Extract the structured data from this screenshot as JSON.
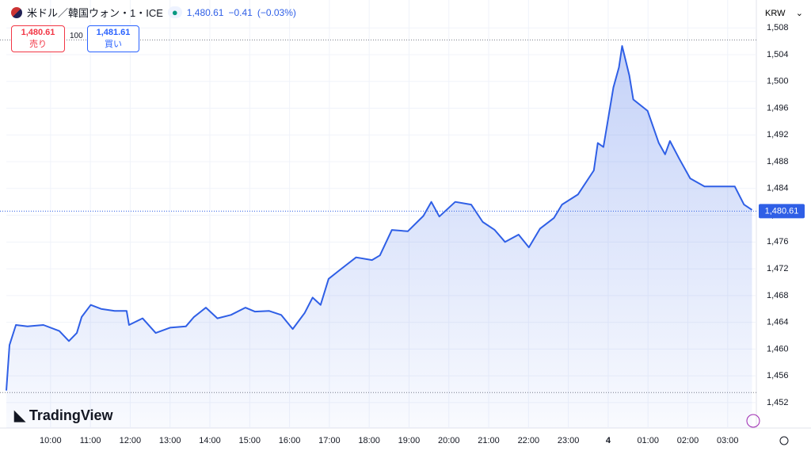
{
  "header": {
    "symbol": "米ドル／韓国ウォン・1・ICE",
    "price": "1,480.61",
    "change": "−0.41",
    "change_pct": "(−0.03%)",
    "sell": {
      "price": "1,480.61",
      "label": "売り"
    },
    "spread": "100",
    "buy": {
      "price": "1,481.61",
      "label": "買い"
    },
    "currency": "KRW",
    "logo": "TradingView"
  },
  "chart_data": {
    "type": "area",
    "color": "#2f5fe6",
    "grid": true,
    "x": [
      8.89,
      8.97,
      9.13,
      9.42,
      9.82,
      10.22,
      10.46,
      10.66,
      10.78,
      11.01,
      11.27,
      11.61,
      11.91,
      11.97,
      12.31,
      12.64,
      13.0,
      13.4,
      13.6,
      13.9,
      14.19,
      14.53,
      14.89,
      15.13,
      15.49,
      15.79,
      16.08,
      16.38,
      16.58,
      16.78,
      16.98,
      17.28,
      17.67,
      18.07,
      18.27,
      18.57,
      18.97,
      19.36,
      19.56,
      19.76,
      20.16,
      20.56,
      20.85,
      21.15,
      21.41,
      21.75,
      22.01,
      22.29,
      22.64,
      22.84,
      23.24,
      23.64,
      23.74,
      23.88,
      24.13,
      24.27,
      24.35,
      24.53,
      24.63,
      24.99,
      25.27,
      25.43,
      25.55,
      25.78,
      26.06,
      26.42,
      26.82,
      27.18,
      27.41,
      27.61
    ],
    "values": [
      1453.8,
      1460.6,
      1463.6,
      1463.4,
      1463.6,
      1462.7,
      1461.2,
      1462.4,
      1464.8,
      1466.6,
      1466.0,
      1465.7,
      1465.7,
      1463.6,
      1464.6,
      1462.4,
      1463.2,
      1463.4,
      1464.8,
      1466.2,
      1464.6,
      1465.1,
      1466.2,
      1465.6,
      1465.7,
      1465.1,
      1463.0,
      1465.4,
      1467.7,
      1466.6,
      1470.5,
      1471.9,
      1473.7,
      1473.3,
      1474.0,
      1477.8,
      1477.6,
      1479.9,
      1482.0,
      1479.8,
      1482.0,
      1481.6,
      1479.0,
      1477.8,
      1476.0,
      1477.1,
      1475.2,
      1478.0,
      1479.6,
      1481.6,
      1483.1,
      1486.7,
      1490.8,
      1490.2,
      1499.1,
      1502.1,
      1505.3,
      1500.9,
      1497.3,
      1495.6,
      1490.8,
      1489.1,
      1491.1,
      1488.5,
      1485.5,
      1484.3,
      1484.3,
      1484.3,
      1481.6,
      1480.8
    ],
    "xlim": [
      8.89,
      27.72
    ],
    "xticks": [
      {
        "value": 10,
        "label": "10:00"
      },
      {
        "value": 11,
        "label": "11:00"
      },
      {
        "value": 12,
        "label": "12:00"
      },
      {
        "value": 13,
        "label": "13:00"
      },
      {
        "value": 14,
        "label": "14:00"
      },
      {
        "value": 15,
        "label": "15:00"
      },
      {
        "value": 16,
        "label": "16:00"
      },
      {
        "value": 17,
        "label": "17:00"
      },
      {
        "value": 18,
        "label": "18:00"
      },
      {
        "value": 19,
        "label": "19:00"
      },
      {
        "value": 20,
        "label": "20:00"
      },
      {
        "value": 21,
        "label": "21:00"
      },
      {
        "value": 22,
        "label": "22:00"
      },
      {
        "value": 23,
        "label": "23:00"
      },
      {
        "value": 24,
        "label": "4"
      },
      {
        "value": 25,
        "label": "01:00"
      },
      {
        "value": 26,
        "label": "02:00"
      },
      {
        "value": 27,
        "label": "03:00"
      }
    ],
    "ylim": [
      1448.2,
      1509.8
    ],
    "yticks": [
      {
        "value": 1452,
        "label": "1,452"
      },
      {
        "value": 1456,
        "label": "1,456"
      },
      {
        "value": 1460,
        "label": "1,460"
      },
      {
        "value": 1464,
        "label": "1,464"
      },
      {
        "value": 1468,
        "label": "1,468"
      },
      {
        "value": 1472,
        "label": "1,472"
      },
      {
        "value": 1476,
        "label": "1,476"
      },
      {
        "value": 1480,
        "label": "1,480"
      },
      {
        "value": 1484,
        "label": "1,484"
      },
      {
        "value": 1488,
        "label": "1,488"
      },
      {
        "value": 1492,
        "label": "1,492"
      },
      {
        "value": 1496,
        "label": "1,496"
      },
      {
        "value": 1500,
        "label": "1,500"
      },
      {
        "value": 1504,
        "label": "1,504"
      },
      {
        "value": 1508,
        "label": "1,508"
      }
    ],
    "last_value": {
      "value": 1480.61,
      "label": "1,480.61"
    },
    "reference_lines": [
      1506.2,
      1453.5
    ]
  }
}
